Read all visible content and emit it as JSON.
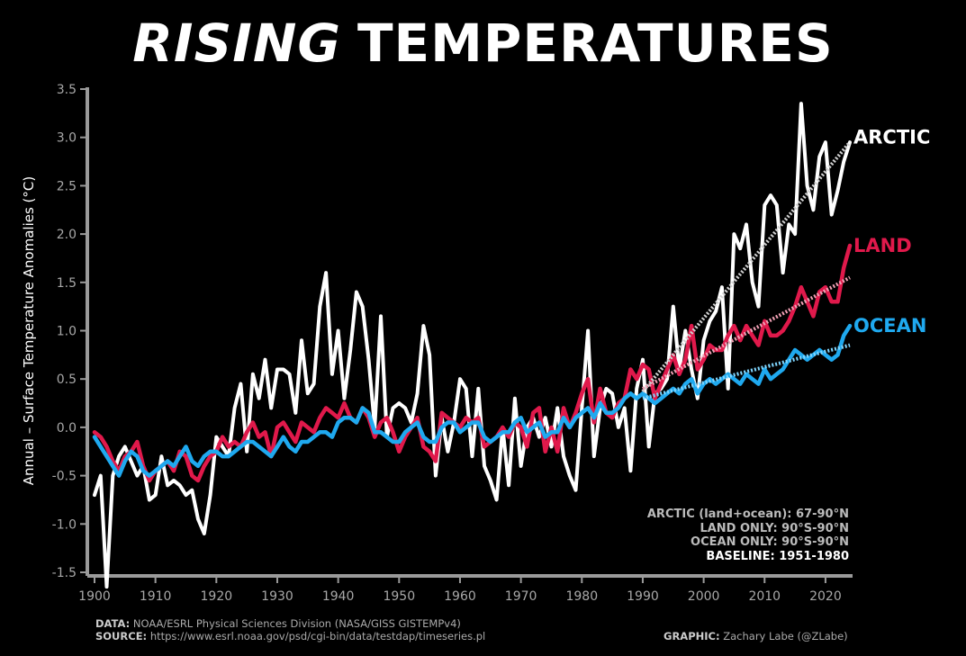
{
  "title": {
    "italic": "RISING",
    "rest": "TEMPERATURES"
  },
  "notes": {
    "arctic": "ARCTIC (land+ocean): 67-90°N",
    "land": "LAND ONLY: 90°S-90°N",
    "ocean": "OCEAN ONLY: 90°S-90°N",
    "baseline": "BASELINE: 1951-1980"
  },
  "footer": {
    "data_label": "DATA:",
    "data_text": "NOAA/ESRL Physical Sciences Division (NASA/GISS GISTEMPv4)",
    "source_label": "SOURCE:",
    "source_text": "https://www.esrl.noaa.gov/psd/cgi-bin/data/testdap/timeseries.pl",
    "graphic_label": "GRAPHIC:",
    "graphic_text": "Zachary Labe (@ZLabe)"
  },
  "colors": {
    "background": "#000000",
    "arctic": "#ffffff",
    "land": "#e0194b",
    "ocean": "#1fa9ef",
    "axis": "#9a9a9a"
  },
  "chart_data": {
    "type": "line",
    "title": "RISING TEMPERATURES",
    "xlabel": "",
    "ylabel": "Annual – Surface Temperature Anomalies (°C)",
    "xlim": [
      1900,
      2024
    ],
    "ylim": [
      -1.5,
      3.5
    ],
    "xticks": [
      1900,
      1910,
      1920,
      1930,
      1940,
      1950,
      1960,
      1970,
      1980,
      1990,
      2000,
      2010,
      2020
    ],
    "yticks": [
      -1.5,
      -1.0,
      -0.5,
      0.0,
      0.5,
      1.0,
      1.5,
      2.0,
      2.5,
      3.0,
      3.5
    ],
    "x_start": 1900,
    "series": [
      {
        "name": "ARCTIC",
        "color": "#ffffff",
        "values": [
          -0.7,
          -0.5,
          -1.65,
          -0.5,
          -0.3,
          -0.2,
          -0.35,
          -0.5,
          -0.4,
          -0.75,
          -0.7,
          -0.3,
          -0.6,
          -0.55,
          -0.6,
          -0.7,
          -0.65,
          -0.95,
          -1.1,
          -0.7,
          -0.1,
          -0.2,
          -0.3,
          0.2,
          0.45,
          -0.25,
          0.55,
          0.3,
          0.7,
          0.2,
          0.6,
          0.6,
          0.55,
          0.15,
          0.9,
          0.35,
          0.45,
          1.25,
          1.6,
          0.55,
          1.0,
          0.3,
          0.8,
          1.4,
          1.25,
          0.7,
          0.0,
          1.15,
          -0.1,
          0.2,
          0.25,
          0.2,
          0.05,
          0.35,
          1.05,
          0.75,
          -0.5,
          0.1,
          -0.25,
          0.05,
          0.5,
          0.4,
          -0.3,
          0.4,
          -0.4,
          -0.55,
          -0.75,
          0.0,
          -0.6,
          0.3,
          -0.4,
          0.0,
          0.1,
          -0.1,
          0.1,
          -0.2,
          0.2,
          -0.3,
          -0.5,
          -0.65,
          0.2,
          1.0,
          -0.3,
          0.2,
          0.4,
          0.35,
          0.0,
          0.2,
          -0.45,
          0.4,
          0.7,
          -0.2,
          0.35,
          0.4,
          0.5,
          1.25,
          0.6,
          1.0,
          0.6,
          0.3,
          0.9,
          1.1,
          1.2,
          1.45,
          0.4,
          2.0,
          1.85,
          2.1,
          1.5,
          1.25,
          2.3,
          2.4,
          2.3,
          1.6,
          2.1,
          2.0,
          3.35,
          2.5,
          2.25,
          2.8,
          2.95,
          2.2,
          2.45,
          2.75,
          2.95
        ]
      },
      {
        "name": "LAND",
        "color": "#e0194b",
        "values": [
          -0.05,
          -0.1,
          -0.2,
          -0.35,
          -0.45,
          -0.3,
          -0.25,
          -0.15,
          -0.4,
          -0.55,
          -0.45,
          -0.4,
          -0.35,
          -0.45,
          -0.25,
          -0.3,
          -0.5,
          -0.55,
          -0.4,
          -0.3,
          -0.25,
          -0.1,
          -0.2,
          -0.15,
          -0.2,
          -0.05,
          0.05,
          -0.1,
          -0.05,
          -0.3,
          0.0,
          0.05,
          -0.05,
          -0.15,
          0.05,
          0.0,
          -0.05,
          0.1,
          0.2,
          0.15,
          0.1,
          0.25,
          0.1,
          0.05,
          0.2,
          0.1,
          -0.1,
          0.05,
          0.1,
          -0.05,
          -0.25,
          -0.1,
          0.0,
          0.1,
          -0.2,
          -0.25,
          -0.35,
          0.15,
          0.1,
          0.05,
          0.0,
          0.1,
          0.05,
          0.1,
          -0.2,
          -0.15,
          -0.1,
          0.0,
          -0.1,
          0.05,
          0.0,
          -0.2,
          0.15,
          0.2,
          -0.25,
          0.0,
          -0.25,
          0.2,
          0.0,
          0.15,
          0.35,
          0.5,
          0.05,
          0.4,
          0.15,
          0.1,
          0.25,
          0.3,
          0.6,
          0.5,
          0.65,
          0.6,
          0.3,
          0.45,
          0.6,
          0.75,
          0.55,
          0.7,
          1.05,
          0.6,
          0.7,
          0.85,
          0.8,
          0.8,
          0.95,
          1.05,
          0.9,
          1.05,
          0.95,
          0.85,
          1.1,
          0.95,
          0.95,
          1.0,
          1.1,
          1.25,
          1.45,
          1.3,
          1.15,
          1.4,
          1.45,
          1.3,
          1.3,
          1.65,
          1.88
        ]
      },
      {
        "name": "OCEAN",
        "color": "#1fa9ef",
        "values": [
          -0.1,
          -0.2,
          -0.3,
          -0.4,
          -0.5,
          -0.35,
          -0.25,
          -0.3,
          -0.45,
          -0.5,
          -0.45,
          -0.4,
          -0.35,
          -0.4,
          -0.3,
          -0.2,
          -0.35,
          -0.4,
          -0.3,
          -0.25,
          -0.25,
          -0.3,
          -0.3,
          -0.25,
          -0.2,
          -0.15,
          -0.15,
          -0.2,
          -0.25,
          -0.3,
          -0.2,
          -0.1,
          -0.2,
          -0.25,
          -0.15,
          -0.15,
          -0.1,
          -0.05,
          -0.05,
          -0.1,
          0.05,
          0.1,
          0.1,
          0.05,
          0.2,
          0.15,
          -0.05,
          -0.05,
          -0.1,
          -0.15,
          -0.15,
          -0.05,
          0.0,
          0.05,
          -0.1,
          -0.15,
          -0.15,
          0.0,
          0.05,
          0.05,
          -0.05,
          0.0,
          0.05,
          0.05,
          -0.1,
          -0.15,
          -0.1,
          -0.05,
          -0.05,
          0.05,
          0.1,
          -0.05,
          0.0,
          0.05,
          -0.1,
          -0.05,
          -0.05,
          0.1,
          0.0,
          0.1,
          0.15,
          0.2,
          0.1,
          0.25,
          0.15,
          0.15,
          0.2,
          0.3,
          0.35,
          0.3,
          0.35,
          0.3,
          0.25,
          0.3,
          0.35,
          0.4,
          0.35,
          0.45,
          0.5,
          0.35,
          0.45,
          0.5,
          0.45,
          0.5,
          0.55,
          0.5,
          0.45,
          0.55,
          0.5,
          0.45,
          0.6,
          0.5,
          0.55,
          0.6,
          0.7,
          0.8,
          0.75,
          0.7,
          0.75,
          0.8,
          0.75,
          0.7,
          0.75,
          0.95,
          1.05
        ]
      }
    ],
    "trends": [
      {
        "name": "ARCTIC trend",
        "color": "#d0d0d0",
        "x": [
          1990,
          2024
        ],
        "y": [
          0.37,
          2.95
        ]
      },
      {
        "name": "LAND trend",
        "color": "#f0a0b4",
        "x": [
          1990,
          2024
        ],
        "y": [
          0.4,
          1.55
        ]
      },
      {
        "name": "OCEAN trend",
        "color": "#7fd6ff",
        "x": [
          1990,
          2024
        ],
        "y": [
          0.3,
          0.85
        ]
      }
    ],
    "series_labels": [
      "ARCTIC",
      "LAND",
      "OCEAN"
    ]
  }
}
